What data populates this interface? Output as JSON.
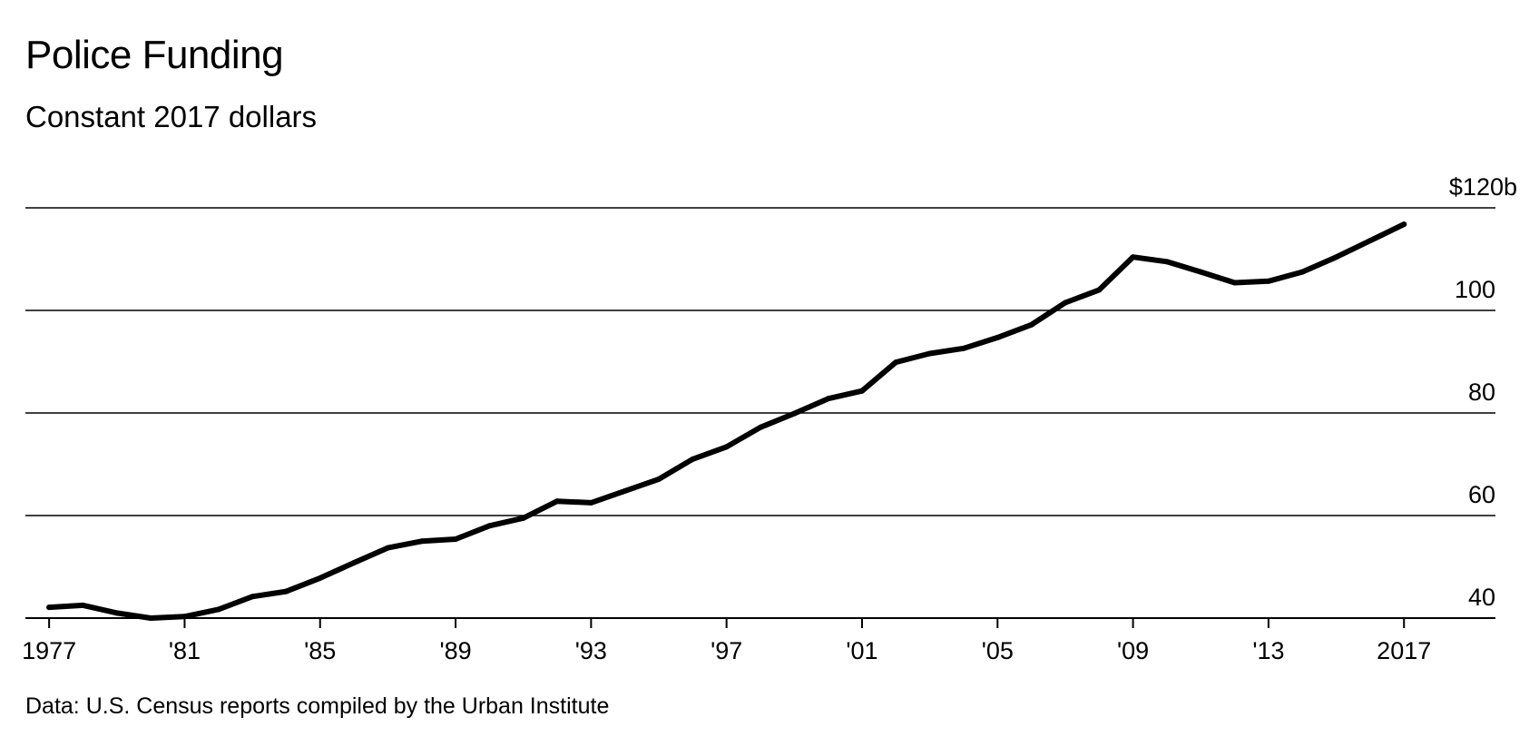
{
  "title": "Police Funding",
  "subtitle": "Constant 2017 dollars",
  "source": "Data: U.S. Census reports compiled by the Urban Institute",
  "chart_data": {
    "type": "line",
    "title": "Police Funding",
    "subtitle": "Constant 2017 dollars",
    "xlabel": "",
    "ylabel": "",
    "xlim": [
      1976.3,
      2019.7
    ],
    "ylim": [
      40,
      120
    ],
    "grid": true,
    "legend": "none",
    "y_ticks": [
      {
        "value": 120,
        "label": "$120b"
      },
      {
        "value": 100,
        "label": "100"
      },
      {
        "value": 80,
        "label": "80"
      },
      {
        "value": 60,
        "label": "60"
      },
      {
        "value": 40,
        "label": "40"
      }
    ],
    "x_ticks": [
      {
        "value": 1977,
        "label": "1977"
      },
      {
        "value": 1981,
        "label": "'81"
      },
      {
        "value": 1985,
        "label": "'85"
      },
      {
        "value": 1989,
        "label": "'89"
      },
      {
        "value": 1993,
        "label": "'93"
      },
      {
        "value": 1997,
        "label": "'97"
      },
      {
        "value": 2001,
        "label": "'01"
      },
      {
        "value": 2005,
        "label": "'05"
      },
      {
        "value": 2009,
        "label": "'09"
      },
      {
        "value": 2013,
        "label": "'13"
      },
      {
        "value": 2017,
        "label": "2017"
      }
    ],
    "x": [
      1977,
      1978,
      1979,
      1980,
      1981,
      1982,
      1983,
      1984,
      1985,
      1986,
      1987,
      1988,
      1989,
      1990,
      1991,
      1992,
      1993,
      1994,
      1995,
      1996,
      1997,
      1998,
      1999,
      2000,
      2001,
      2002,
      2003,
      2004,
      2005,
      2006,
      2007,
      2008,
      2009,
      2010,
      2011,
      2012,
      2013,
      2014,
      2015,
      2016,
      2017
    ],
    "series": [
      {
        "color": "#000000",
        "values": [
          42.1,
          42.5,
          41.0,
          40.0,
          40.3,
          41.7,
          44.2,
          45.2,
          47.8,
          50.8,
          53.7,
          55.0,
          55.4,
          58.0,
          59.5,
          62.8,
          62.5,
          64.8,
          67.1,
          71.0,
          73.4,
          77.2,
          79.9,
          82.8,
          84.3,
          89.9,
          91.6,
          92.6,
          94.7,
          97.2,
          101.5,
          104.0,
          110.4,
          109.5,
          107.5,
          105.4,
          105.7,
          107.5,
          110.4,
          113.6,
          116.8
        ]
      }
    ]
  }
}
